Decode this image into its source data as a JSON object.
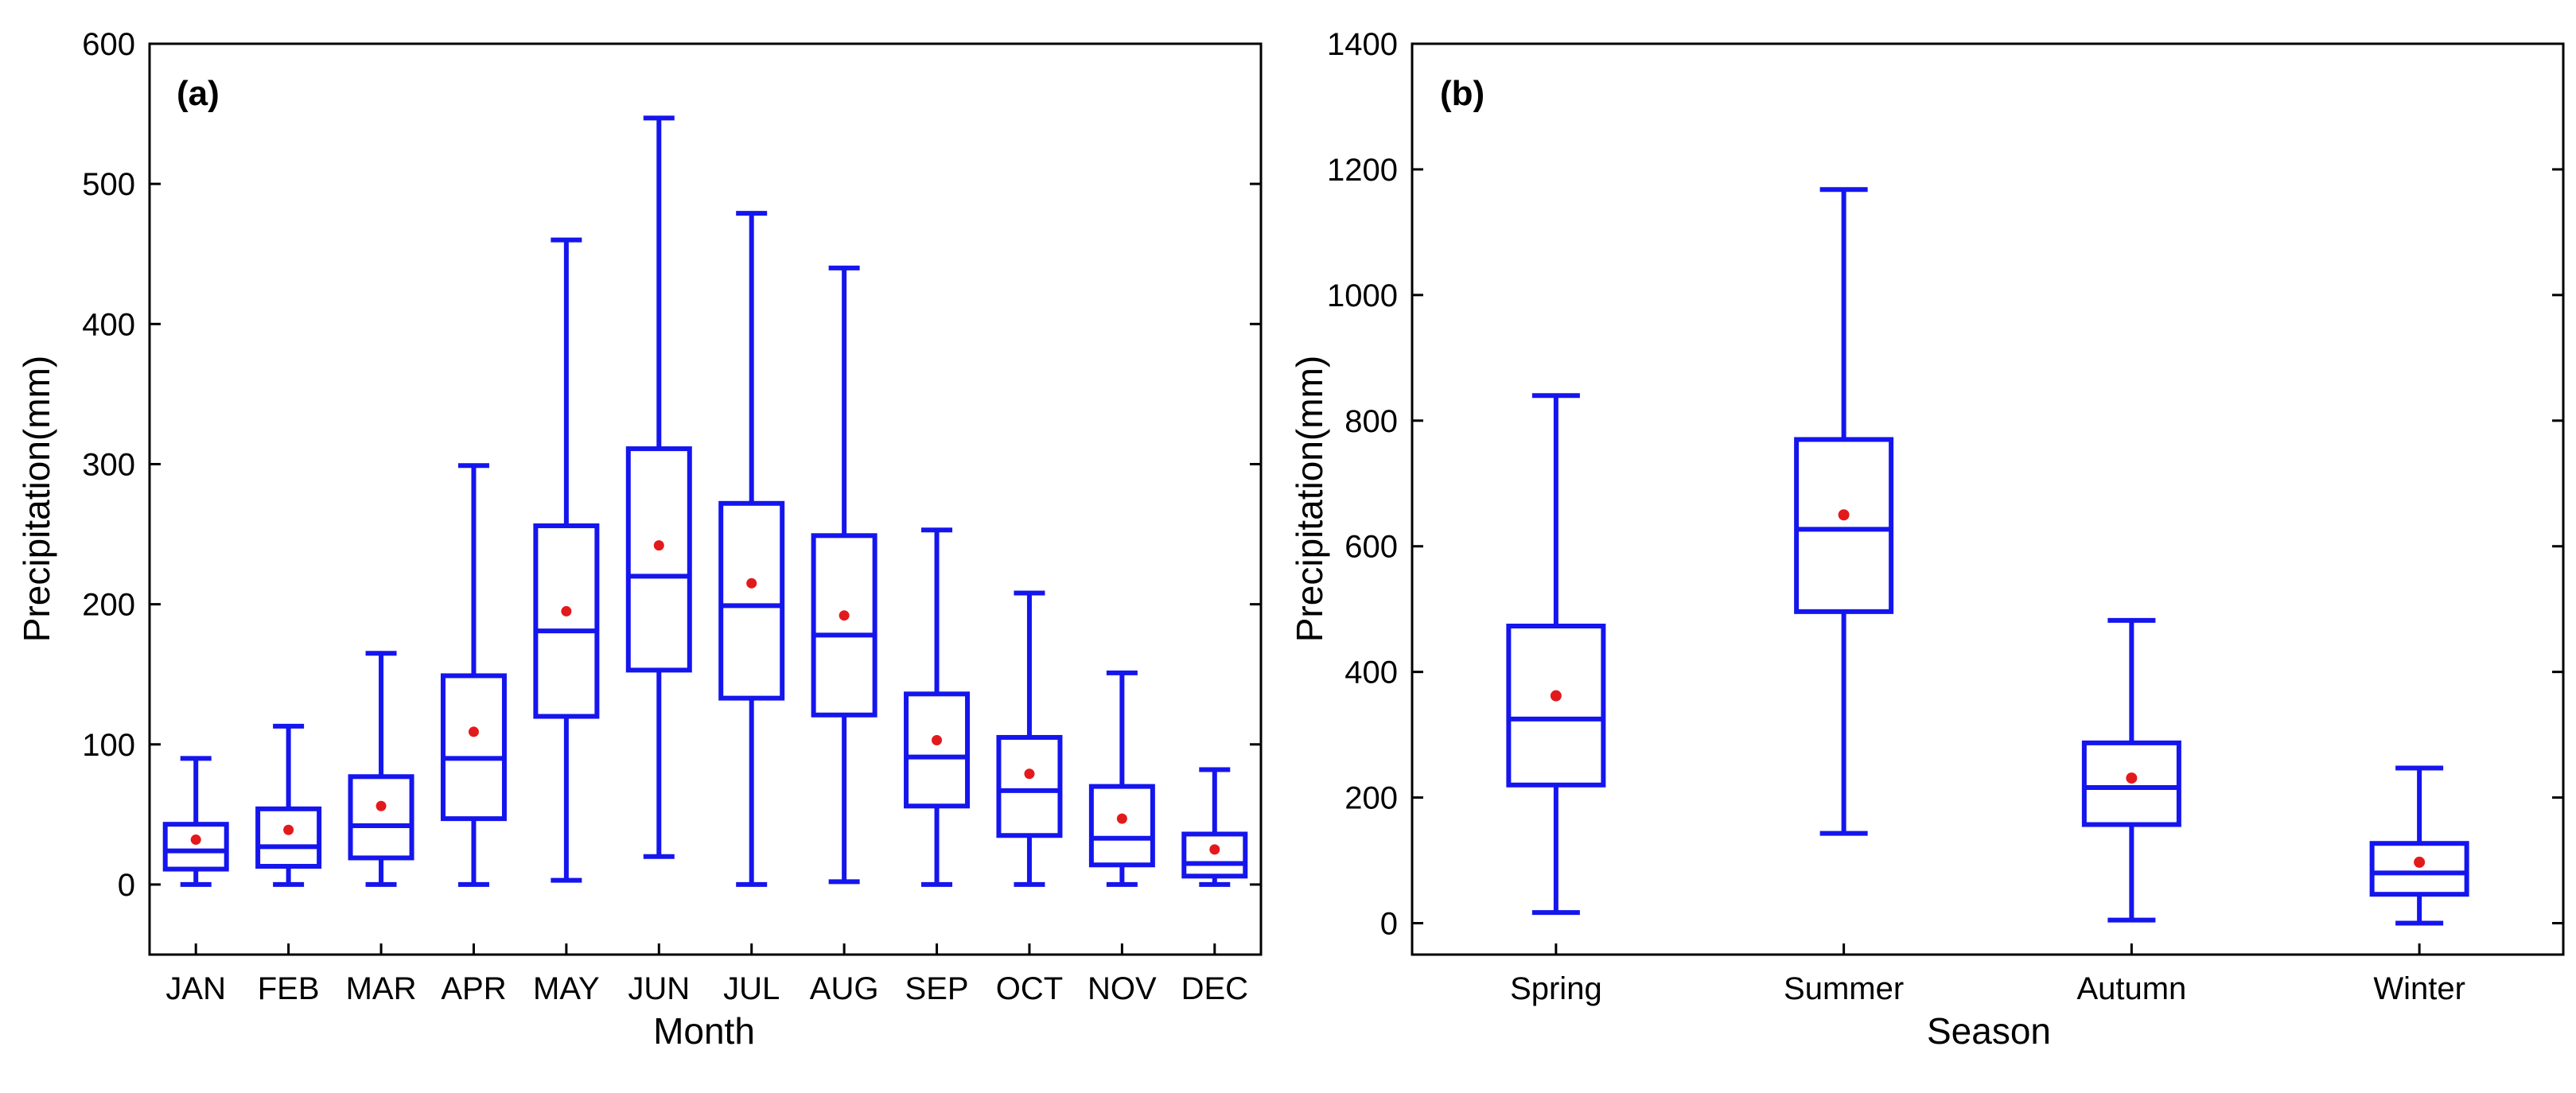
{
  "colors": {
    "box": "#1515ee",
    "mean": "#e31a1c",
    "axis": "#000000",
    "background": "#ffffff"
  },
  "chart_data": [
    {
      "type": "box",
      "panel_label": "(a)",
      "title": "",
      "xlabel": "Month",
      "ylabel": "Precipitation(mm)",
      "ylim": [
        -50,
        600
      ],
      "yticks": [
        0,
        100,
        200,
        300,
        400,
        500,
        600
      ],
      "categories": [
        "JAN",
        "FEB",
        "MAR",
        "APR",
        "MAY",
        "JUN",
        "JUL",
        "AUG",
        "SEP",
        "OCT",
        "NOV",
        "DEC"
      ],
      "boxes": [
        {
          "category": "JAN",
          "min": 0,
          "q1": 11,
          "median": 24,
          "q3": 43,
          "max": 90,
          "mean": 32
        },
        {
          "category": "FEB",
          "min": 0,
          "q1": 13,
          "median": 27,
          "q3": 54,
          "max": 113,
          "mean": 39
        },
        {
          "category": "MAR",
          "min": 0,
          "q1": 19,
          "median": 42,
          "q3": 77,
          "max": 165,
          "mean": 56
        },
        {
          "category": "APR",
          "min": 0,
          "q1": 47,
          "median": 90,
          "q3": 149,
          "max": 299,
          "mean": 109
        },
        {
          "category": "MAY",
          "min": 3,
          "q1": 120,
          "median": 181,
          "q3": 256,
          "max": 460,
          "mean": 195
        },
        {
          "category": "JUN",
          "min": 20,
          "q1": 153,
          "median": 220,
          "q3": 311,
          "max": 547,
          "mean": 242
        },
        {
          "category": "JUL",
          "min": 0,
          "q1": 133,
          "median": 199,
          "q3": 272,
          "max": 479,
          "mean": 215
        },
        {
          "category": "AUG",
          "min": 2,
          "q1": 121,
          "median": 178,
          "q3": 249,
          "max": 440,
          "mean": 192
        },
        {
          "category": "SEP",
          "min": 0,
          "q1": 56,
          "median": 91,
          "q3": 136,
          "max": 253,
          "mean": 103
        },
        {
          "category": "OCT",
          "min": 0,
          "q1": 35,
          "median": 67,
          "q3": 105,
          "max": 208,
          "mean": 79
        },
        {
          "category": "NOV",
          "min": 0,
          "q1": 14,
          "median": 33,
          "q3": 70,
          "max": 151,
          "mean": 47
        },
        {
          "category": "DEC",
          "min": 0,
          "q1": 6,
          "median": 15,
          "q3": 36,
          "max": 82,
          "mean": 25
        }
      ]
    },
    {
      "type": "box",
      "panel_label": "(b)",
      "title": "",
      "xlabel": "Season",
      "ylabel": "Precipitation(mm)",
      "ylim": [
        -50,
        1400
      ],
      "yticks": [
        0,
        200,
        400,
        600,
        800,
        1000,
        1200,
        1400
      ],
      "categories": [
        "Spring",
        "Summer",
        "Autumn",
        "Winter"
      ],
      "boxes": [
        {
          "category": "Spring",
          "min": 17,
          "q1": 220,
          "median": 325,
          "q3": 473,
          "max": 840,
          "mean": 362
        },
        {
          "category": "Summer",
          "min": 143,
          "q1": 496,
          "median": 627,
          "q3": 770,
          "max": 1168,
          "mean": 650
        },
        {
          "category": "Autumn",
          "min": 5,
          "q1": 157,
          "median": 216,
          "q3": 287,
          "max": 482,
          "mean": 231
        },
        {
          "category": "Winter",
          "min": 0,
          "q1": 46,
          "median": 80,
          "q3": 127,
          "max": 247,
          "mean": 97
        }
      ]
    }
  ]
}
